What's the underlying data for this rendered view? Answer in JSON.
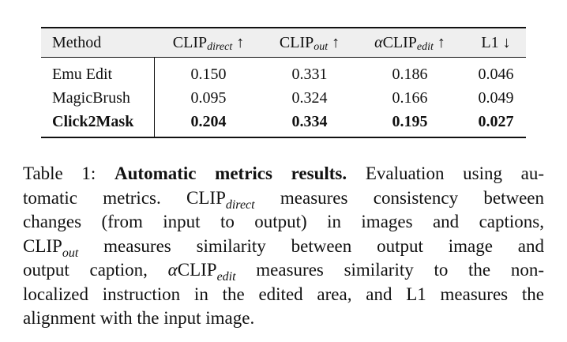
{
  "table": {
    "header": {
      "method": "Method",
      "clip_direct_base": "CLIP",
      "clip_direct_sub": "direct",
      "clip_direct_arrow": "↑",
      "clip_out_base": "CLIP",
      "clip_out_sub": "out",
      "clip_out_arrow": "↑",
      "alpha_symbol": "α",
      "alpha_clip_base": "CLIP",
      "alpha_clip_sub": "edit",
      "alpha_clip_arrow": "↑",
      "l1": "L1",
      "l1_arrow": "↓"
    },
    "rows": [
      {
        "method": "Emu Edit",
        "clip_direct": "0.150",
        "clip_out": "0.331",
        "alpha_clip_edit": "0.186",
        "l1": "0.046"
      },
      {
        "method": "MagicBrush",
        "clip_direct": "0.095",
        "clip_out": "0.324",
        "alpha_clip_edit": "0.166",
        "l1": "0.049"
      },
      {
        "method": "Click2Mask",
        "clip_direct": "0.204",
        "clip_out": "0.334",
        "alpha_clip_edit": "0.195",
        "l1": "0.027"
      }
    ]
  },
  "caption": {
    "label": "Table 1:",
    "bold_title": "Automatic metrics results.",
    "line1_rest": "Evaluation using au-",
    "line2_pre": "tomatic metrics. CLIP",
    "line2_sub": "direct",
    "line2_post": "measures consistency between",
    "line3": "changes (from input to output) in images and captions,",
    "line4_pre": "CLIP",
    "line4_sub": "out",
    "line4_post": "measures similarity between output image and",
    "line5_pre": "output caption,",
    "line5_alpha": "α",
    "line5_clip": "CLIP",
    "line5_sub": "edit",
    "line5_post": "measures similarity to the non-",
    "line6": "localized instruction in the edited area, and L1 measures the",
    "line7": "alignment with the input image."
  }
}
